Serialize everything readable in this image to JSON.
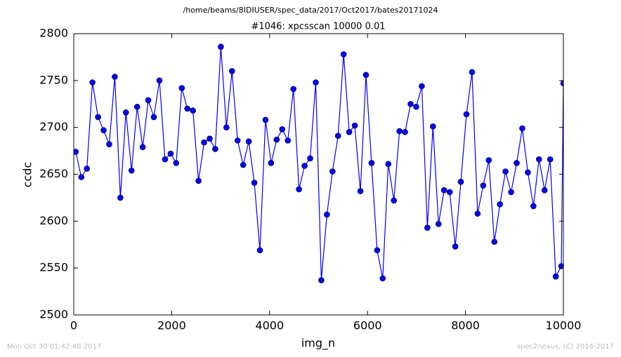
{
  "chart_data": {
    "type": "line",
    "suptitle": "/home/beams/8IDIUSER/spec_data/2017/Oct2017/bates20171024",
    "title": "#1046: xpcsscan 10000 0.01",
    "xlabel": "img_n",
    "ylabel": "ccdc",
    "footer_left": "Mon Oct 30 01:42:48 2017",
    "footer_right": "spec2nexus, (C) 2014-2017",
    "x": [
      40,
      154,
      268,
      382,
      496,
      610,
      724,
      838,
      952,
      1066,
      1180,
      1294,
      1408,
      1522,
      1636,
      1750,
      1864,
      1978,
      2092,
      2206,
      2320,
      2434,
      2548,
      2662,
      2776,
      2890,
      3004,
      3118,
      3232,
      3346,
      3460,
      3574,
      3688,
      3802,
      3916,
      4030,
      4144,
      4258,
      4372,
      4486,
      4600,
      4714,
      4828,
      4942,
      5056,
      5170,
      5284,
      5398,
      5512,
      5626,
      5740,
      5854,
      5968,
      6082,
      6196,
      6310,
      6424,
      6538,
      6652,
      6766,
      6880,
      6994,
      7108,
      7222,
      7336,
      7450,
      7564,
      7678,
      7792,
      7906,
      8020,
      8134,
      8248,
      8362,
      8476,
      8590,
      8704,
      8818,
      8932,
      9046,
      9160,
      9274,
      9388,
      9502,
      9616,
      9730,
      9844,
      9958,
      10000
    ],
    "series": [
      {
        "name": "ccdc",
        "color": "#0000ff",
        "values": [
          2674,
          2647,
          2656,
          2748,
          2711,
          2697,
          2682,
          2754,
          2625,
          2716,
          2654,
          2722,
          2679,
          2729,
          2711,
          2750,
          2666,
          2672,
          2662,
          2742,
          2720,
          2718,
          2643,
          2684,
          2688,
          2677,
          2786,
          2700,
          2760,
          2686,
          2660,
          2685,
          2641,
          2569,
          2708,
          2662,
          2687,
          2698,
          2686,
          2741,
          2634,
          2659,
          2667,
          2748,
          2537,
          2607,
          2653,
          2691,
          2778,
          2695,
          2702,
          2632,
          2756,
          2662,
          2569,
          2539,
          2661,
          2622,
          2696,
          2695,
          2725,
          2722,
          2744,
          2593,
          2701,
          2597,
          2633,
          2631,
          2573,
          2642,
          2714,
          2759,
          2608,
          2638,
          2665,
          2578,
          2618,
          2653,
          2631,
          2662,
          2699,
          2652,
          2616,
          2666,
          2633,
          2666,
          2541,
          2552,
          2747
        ]
      }
    ],
    "xlim": [
      0,
      10000
    ],
    "xticks": [
      0,
      2000,
      4000,
      6000,
      8000,
      10000
    ],
    "ylim": [
      2500,
      2800
    ],
    "yticks": [
      2500,
      2550,
      2600,
      2650,
      2700,
      2750,
      2800
    ],
    "grid": false
  }
}
